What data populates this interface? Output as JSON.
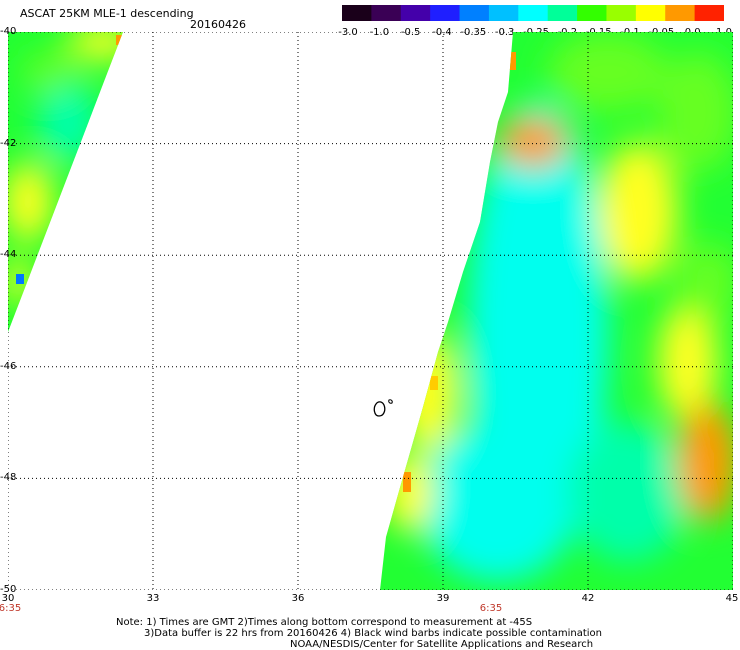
{
  "header": {
    "title": "ASCAT 25KM MLE-1 descending",
    "date": "20160426"
  },
  "colorbar": {
    "tick_labels": [
      "-3.0",
      "-1.0",
      "-0.5",
      "-0.4",
      "-0.35",
      "-0.3",
      "-0.25",
      "-0.2",
      "-0.15",
      "-0.1",
      "-0.05",
      "0.0",
      "1.0"
    ],
    "colors": [
      "#1a001a",
      "#3a0055",
      "#4400aa",
      "#1f1fff",
      "#0080ff",
      "#00c0ff",
      "#00ffff",
      "#00ff99",
      "#33ff00",
      "#99ff00",
      "#ffff00",
      "#ff9900",
      "#ff2200"
    ]
  },
  "map": {
    "lon_labels": [
      "30",
      "33",
      "36",
      "39",
      "42",
      "45"
    ],
    "lat_labels": [
      "-40",
      "-42",
      "-44",
      "-46",
      "-48",
      "-50"
    ],
    "time_labels": [
      "6:35",
      "6:35"
    ],
    "lon_range": [
      30,
      45
    ],
    "lat_range": [
      -50,
      -40
    ],
    "palette": {
      "green": "#22ff33",
      "lime": "#66ff22",
      "cyan": "#00ffee",
      "aqua": "#00ffaa",
      "yellow": "#ffff22",
      "orange": "#ff9900",
      "gold": "#ffcc00",
      "blue": "#0077ff"
    }
  },
  "notes": {
    "line1": "Note: 1) Times are GMT 2)Times along bottom correspond to measurement at -45S",
    "line2": "3)Data buffer is 22 hrs from 20160426 4) Black wind barbs indicate possible contamination",
    "line3": "NOAA/NESDIS/Center for Satellite Applications and Research"
  }
}
